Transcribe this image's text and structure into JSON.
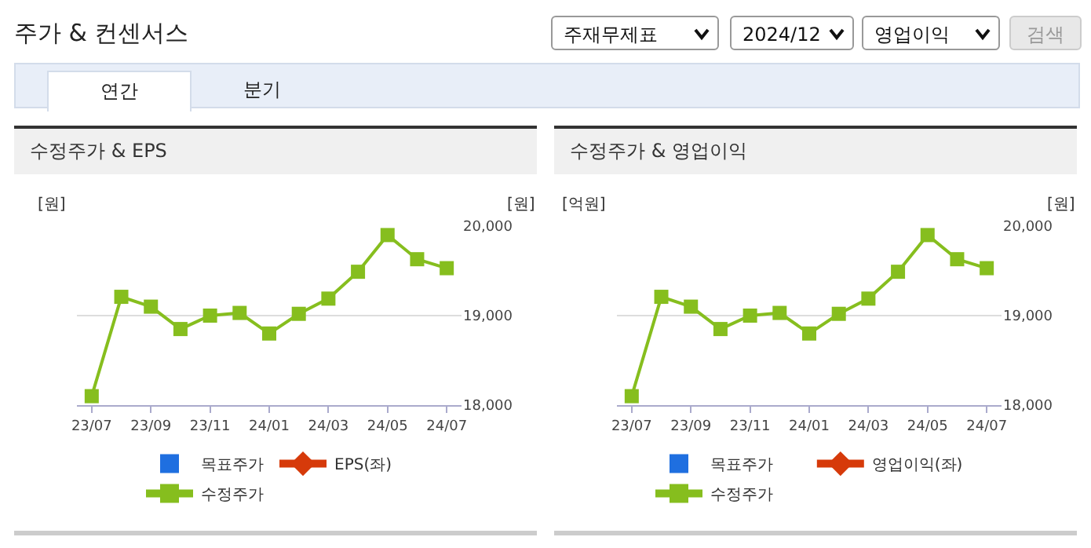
{
  "chart_data": [
    {
      "type": "line",
      "title": "수정주가 & EPS",
      "ylabel": "[원]",
      "y2label": "[원]",
      "annotations": [
        "주가 & 컨센서스",
        "주재무제표",
        "2024/12",
        "영업이익",
        "검색",
        "연간",
        "분기"
      ],
      "categories": [
        "23/07",
        null,
        "23/09",
        null,
        "23/11",
        null,
        "24/01",
        null,
        "24/03",
        null,
        "24/05",
        null,
        "24/07"
      ],
      "series": [
        {
          "name": "목표주가",
          "type": "scatter",
          "marker": "square",
          "color": "#1f6fe0",
          "values": [
            null,
            null,
            null,
            null,
            null,
            null,
            null,
            null,
            null,
            null,
            null,
            null,
            null
          ]
        },
        {
          "name": "EPS(좌)",
          "marker": "diamond",
          "color": "#d63a0a",
          "values": [
            null,
            null,
            null,
            null,
            null,
            null,
            null,
            null,
            null,
            null,
            null,
            null,
            null
          ]
        },
        {
          "name": "수정주가",
          "axis": "y2",
          "marker": "square",
          "color": "#86be1e",
          "values": [
            18100,
            19210,
            19100,
            18850,
            19000,
            19030,
            18800,
            19020,
            19190,
            19490,
            19900,
            19630,
            19530
          ]
        }
      ],
      "y2lim": [
        18000,
        20000
      ],
      "y2ticks": [
        {
          "value": 18000,
          "label": "18,000"
        },
        {
          "value": 19000,
          "label": "19,000"
        },
        {
          "value": 20000,
          "label": "20,000"
        }
      ],
      "grid": "y",
      "legend": "bottom",
      "tick_labels": "x"
    },
    {
      "type": "line",
      "title": "수정주가 & 영업이익",
      "ylabel": "[억원]",
      "y2label": "[원]",
      "categories": [
        "23/07",
        null,
        "23/09",
        null,
        "23/11",
        null,
        "24/01",
        null,
        "24/03",
        null,
        "24/05",
        null,
        "24/07"
      ],
      "series": [
        {
          "name": "목표주가",
          "type": "scatter",
          "marker": "square",
          "color": "#1f6fe0",
          "values": [
            null,
            null,
            null,
            null,
            null,
            null,
            null,
            null,
            null,
            null,
            null,
            null,
            null
          ]
        },
        {
          "name": "영업이익(좌)",
          "marker": "diamond",
          "color": "#d63a0a",
          "values": [
            null,
            null,
            null,
            null,
            null,
            null,
            null,
            null,
            null,
            null,
            null,
            null,
            null
          ]
        },
        {
          "name": "수정주가",
          "axis": "y2",
          "marker": "square",
          "color": "#86be1e",
          "values": [
            18100,
            19210,
            19100,
            18850,
            19000,
            19030,
            18800,
            19020,
            19190,
            19490,
            19900,
            19630,
            19530
          ]
        }
      ],
      "y2lim": [
        18000,
        20000
      ],
      "y2ticks": [
        {
          "value": 18000,
          "label": "18,000"
        },
        {
          "value": 19000,
          "label": "19,000"
        },
        {
          "value": 20000,
          "label": "20,000"
        }
      ],
      "grid": "y",
      "legend": "bottom",
      "tick_labels": "x"
    }
  ]
}
